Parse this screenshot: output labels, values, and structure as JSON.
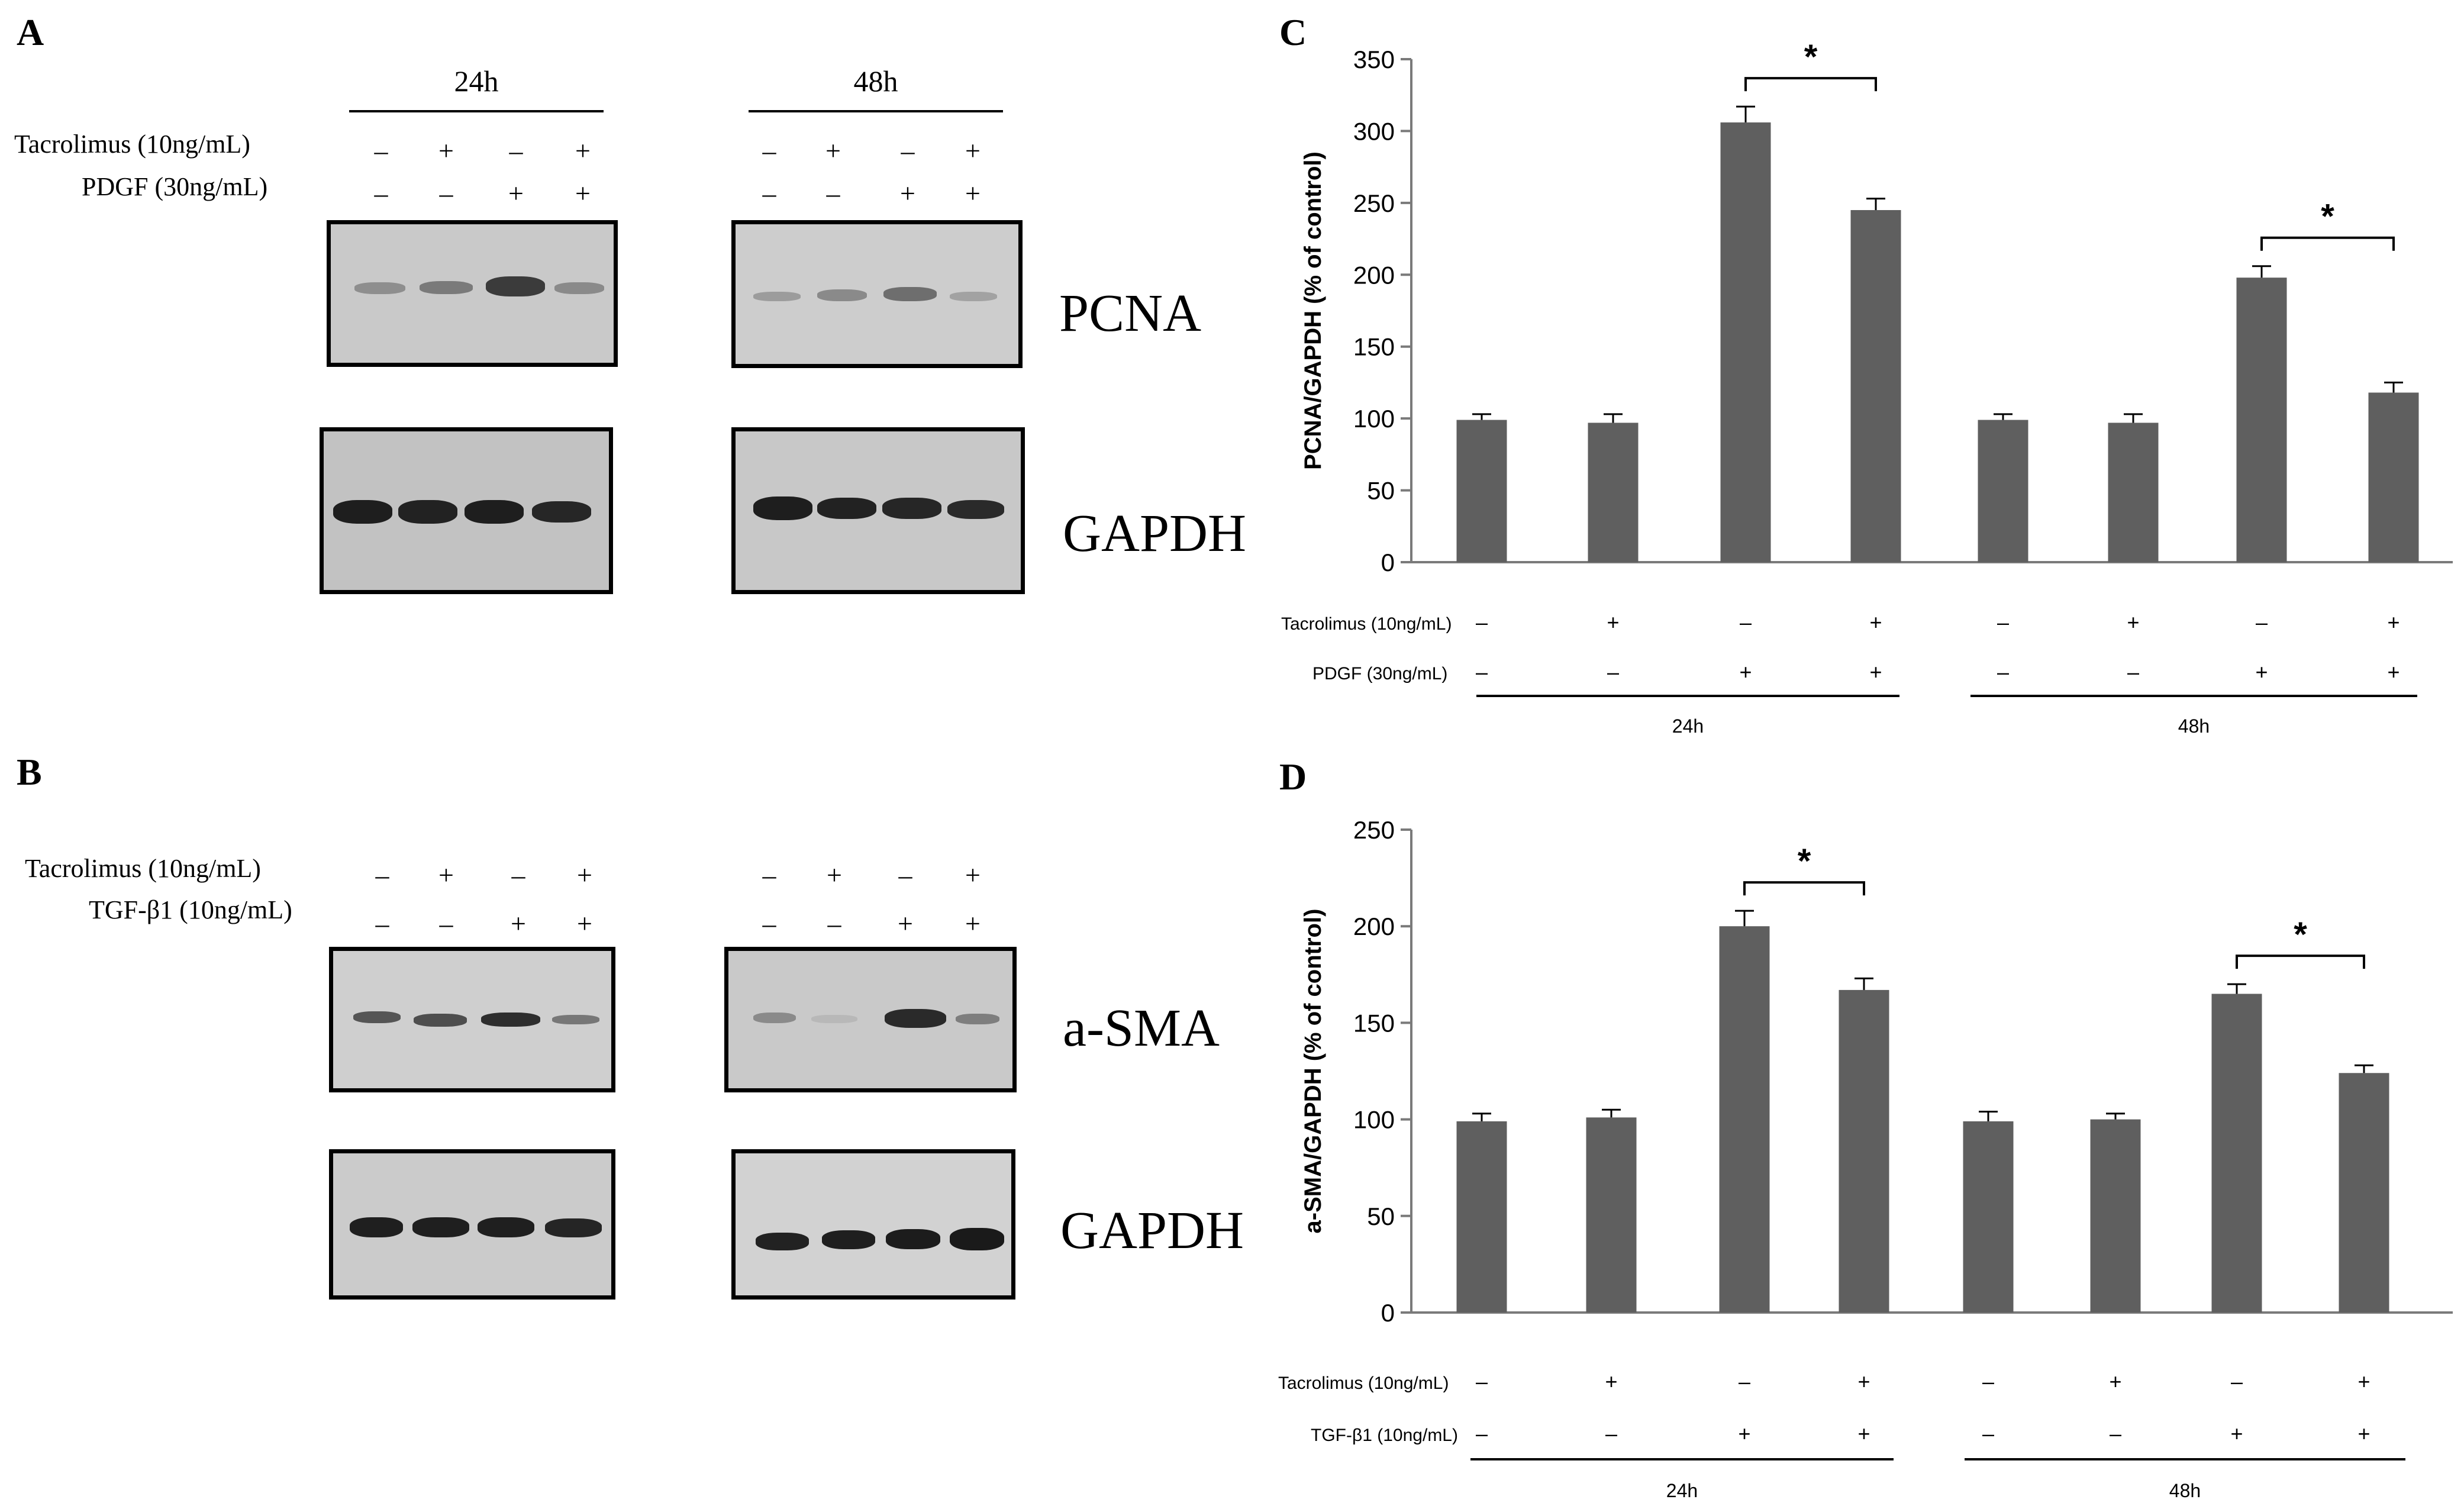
{
  "panels": {
    "A": "A",
    "B": "B",
    "C": "C",
    "D": "D"
  },
  "blots": {
    "A": {
      "times": [
        "24h",
        "48h"
      ],
      "row1_label": "Tacrolimus (10ng/mL)",
      "row2_label": "PDGF (30ng/mL)",
      "row1_signs": [
        "–",
        "+",
        "–",
        "+"
      ],
      "row2_signs": [
        "–",
        "–",
        "+",
        "+"
      ],
      "proteins": [
        "PCNA",
        "GAPDH"
      ]
    },
    "B": {
      "row1_label": "Tacrolimus (10ng/mL)",
      "row2_label": "TGF-β1 (10ng/mL)",
      "row1_signs": [
        "–",
        "+",
        "–",
        "+"
      ],
      "row2_signs": [
        "–",
        "–",
        "+",
        "+"
      ],
      "proteins": [
        "a-SMA",
        "GAPDH"
      ]
    }
  },
  "chart_data": [
    {
      "type": "bar",
      "panel": "C",
      "title": "",
      "ylabel": "PCNA/GAPDH (% of control)",
      "ylim": [
        0,
        350
      ],
      "yticks": [
        0,
        50,
        100,
        150,
        200,
        250,
        300,
        350
      ],
      "values": [
        99,
        97,
        306,
        245,
        99,
        97,
        198,
        118
      ],
      "errors": [
        4,
        6,
        11,
        8,
        4,
        6,
        8,
        7
      ],
      "row1_label": "Tacrolimus  (10ng/mL)",
      "row2_label": "PDGF (30ng/mL)",
      "row1_signs": [
        "–",
        "+",
        "–",
        "+",
        "–",
        "+",
        "–",
        "+"
      ],
      "row2_signs": [
        "–",
        "–",
        "+",
        "+",
        "–",
        "–",
        "+",
        "+"
      ],
      "groups": [
        "24h",
        "48h"
      ],
      "significance": [
        {
          "from": 2,
          "to": 3,
          "label": "*"
        },
        {
          "from": 6,
          "to": 7,
          "label": "*"
        }
      ],
      "bar_color": "#5f5f5f"
    },
    {
      "type": "bar",
      "panel": "D",
      "title": "",
      "ylabel": "a-SMA/GAPDH (% of control)",
      "ylim": [
        0,
        250
      ],
      "yticks": [
        0,
        50,
        100,
        150,
        200,
        250
      ],
      "values": [
        99,
        101,
        200,
        167,
        99,
        100,
        165,
        124
      ],
      "errors": [
        4,
        4,
        8,
        6,
        5,
        3,
        5,
        4
      ],
      "row1_label": "Tacrolimus  (10ng/mL)",
      "row2_label": "TGF-β1 (10ng/mL)",
      "row1_signs": [
        "–",
        "+",
        "–",
        "+",
        "–",
        "+",
        "–",
        "+"
      ],
      "row2_signs": [
        "–",
        "–",
        "+",
        "+",
        "–",
        "–",
        "+",
        "+"
      ],
      "groups": [
        "24h",
        "48h"
      ],
      "significance": [
        {
          "from": 2,
          "to": 3,
          "label": "*"
        },
        {
          "from": 6,
          "to": 7,
          "label": "*"
        }
      ],
      "bar_color": "#5f5f5f"
    }
  ]
}
